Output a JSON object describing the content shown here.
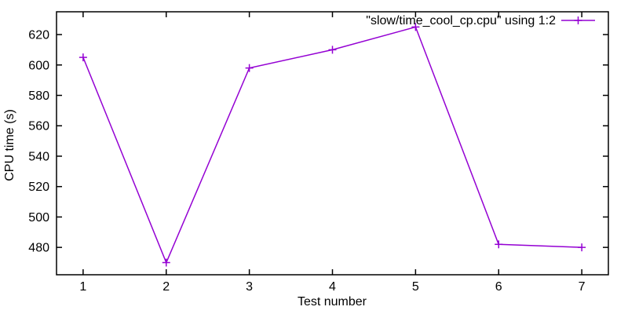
{
  "chart_data": {
    "type": "line",
    "title": "",
    "xlabel": "Test number",
    "ylabel": "CPU time (s)",
    "legend": {
      "label": "\"slow/time_cool_cp.cpu\" using 1:2",
      "position": "top-right-inside"
    },
    "x": [
      1,
      2,
      3,
      4,
      5,
      6,
      7
    ],
    "series": [
      {
        "name": "\"slow/time_cool_cp.cpu\" using 1:2",
        "values": [
          605,
          470,
          598,
          610,
          625,
          482,
          480
        ],
        "color": "#9400d3",
        "marker": "plus"
      }
    ],
    "x_ticks": [
      1,
      2,
      3,
      4,
      5,
      6,
      7
    ],
    "y_ticks": [
      480,
      500,
      520,
      540,
      560,
      580,
      600,
      620
    ],
    "xlim": [
      0.68,
      7.32
    ],
    "ylim": [
      462,
      635
    ],
    "grid": false,
    "tick_style": "inward-mirrored",
    "border_color": "#000000",
    "text_color": "#000000",
    "background": "#ffffff"
  }
}
